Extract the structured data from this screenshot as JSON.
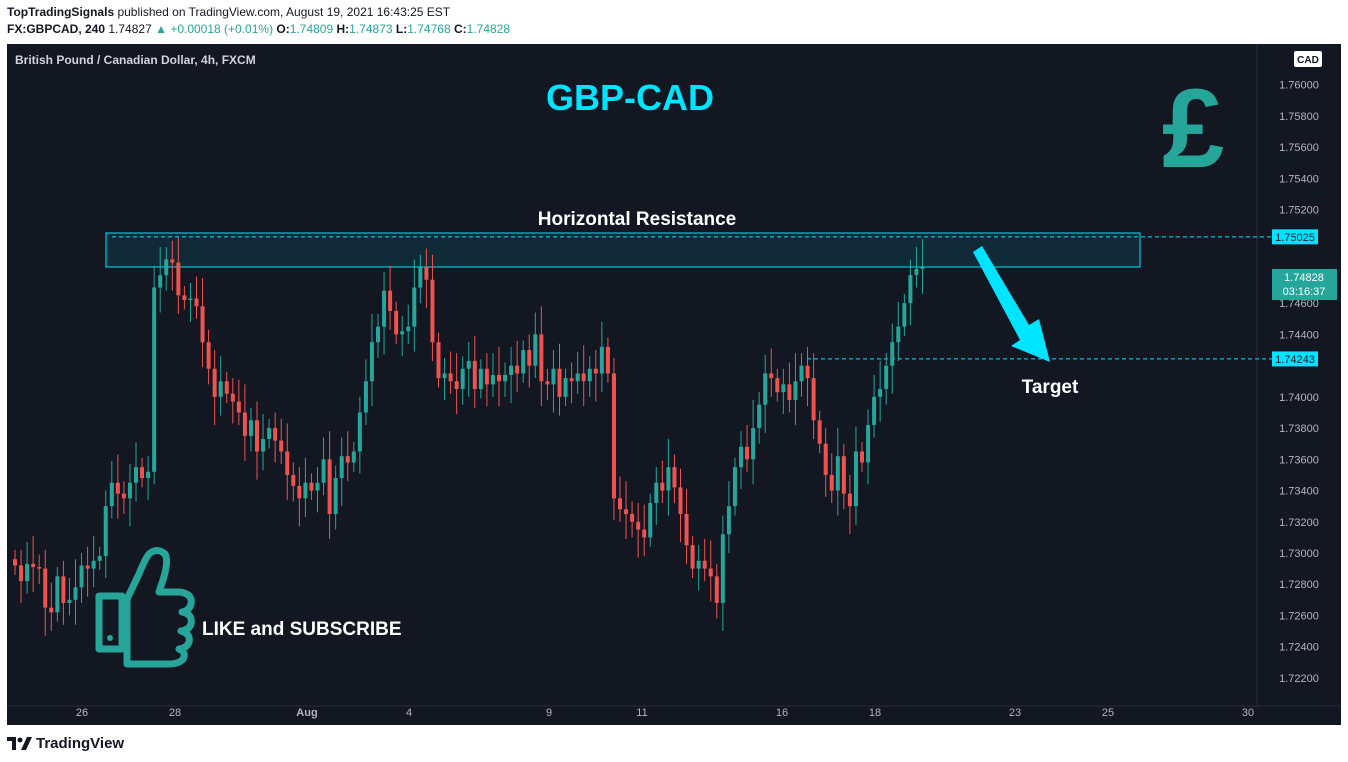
{
  "header": {
    "author": "TopTradingSignals",
    "published": " published on TradingView.com, August 19, 2021 16:43:25 EST",
    "symbol_line": "FX:GBPCAD, 240",
    "last": "1.74827",
    "change": "▲ +0.00018 (+0.01%)",
    "o_label": "O:",
    "o_val": "1.74809",
    "h_label": "H:",
    "h_val": "1.74873",
    "l_label": "L:",
    "l_val": "1.74768",
    "c_label": "C:",
    "c_val": "1.74828"
  },
  "footer": {
    "brand": "TradingView"
  },
  "chart_data": {
    "type": "candlestick",
    "title": "GBP-CAD",
    "instrument": "British Pound / Canadian Dollar, 4h, FXCM",
    "currency_badge": "CAD",
    "ylim": [
      1.7202,
      1.7626
    ],
    "y_ticks": [
      "1.76000",
      "1.75800",
      "1.75600",
      "1.75400",
      "1.75200",
      "1.74600",
      "1.74400",
      "1.74000",
      "1.73800",
      "1.73600",
      "1.73400",
      "1.73200",
      "1.73000",
      "1.72800",
      "1.72600",
      "1.72400",
      "1.72200"
    ],
    "x_ticks": [
      "26",
      "28",
      "Aug",
      "4",
      "9",
      "11",
      "16",
      "18",
      "23",
      "25",
      "30"
    ],
    "closes": [
      1.7292,
      1.7282,
      1.7293,
      1.7291,
      1.729,
      1.7265,
      1.7262,
      1.7285,
      1.7268,
      1.727,
      1.7278,
      1.7292,
      1.729,
      1.7295,
      1.7298,
      1.733,
      1.7345,
      1.7338,
      1.7335,
      1.7345,
      1.7355,
      1.7348,
      1.7352,
      1.747,
      1.7478,
      1.7488,
      1.7486,
      1.7465,
      1.7462,
      1.7463,
      1.7458,
      1.7435,
      1.7418,
      1.74,
      1.741,
      1.7402,
      1.7397,
      1.739,
      1.7375,
      1.7385,
      1.7365,
      1.7373,
      1.738,
      1.7372,
      1.7365,
      1.735,
      1.7343,
      1.7335,
      1.7345,
      1.734,
      1.7345,
      1.736,
      1.7325,
      1.7348,
      1.7362,
      1.7358,
      1.7365,
      1.739,
      1.741,
      1.7435,
      1.7445,
      1.7468,
      1.7455,
      1.744,
      1.7442,
      1.7445,
      1.747,
      1.7483,
      1.7475,
      1.7435,
      1.7412,
      1.7415,
      1.741,
      1.7405,
      1.7418,
      1.7423,
      1.7405,
      1.7418,
      1.7408,
      1.7414,
      1.741,
      1.7414,
      1.742,
      1.7415,
      1.743,
      1.742,
      1.744,
      1.741,
      1.7408,
      1.7418,
      1.74,
      1.7412,
      1.741,
      1.7415,
      1.741,
      1.7418,
      1.7415,
      1.7432,
      1.7415,
      1.7335,
      1.7328,
      1.7325,
      1.732,
      1.7315,
      1.731,
      1.7332,
      1.7345,
      1.734,
      1.7355,
      1.7342,
      1.7325,
      1.7305,
      1.729,
      1.7295,
      1.729,
      1.7285,
      1.7268,
      1.7312,
      1.733,
      1.7355,
      1.7368,
      1.736,
      1.738,
      1.7395,
      1.7415,
      1.7412,
      1.7403,
      1.7408,
      1.7398,
      1.741,
      1.742,
      1.7412,
      1.7385,
      1.737,
      1.735,
      1.734,
      1.7362,
      1.7338,
      1.733,
      1.7365,
      1.7358,
      1.7382,
      1.74,
      1.7405,
      1.742,
      1.7435,
      1.7445,
      1.746,
      1.7478,
      1.7482,
      1.7483
    ],
    "annotations": {
      "resistance_label": "Horizontal Resistance",
      "resistance_level": 1.75025,
      "resistance_price_label": "1.75025",
      "target_label": "Target",
      "target_level": 1.74243,
      "target_price_label": "1.74243",
      "last_price_label": "1.74828",
      "countdown": "03:16:37",
      "cta": "LIKE and SUBSCRIBE",
      "icon": "pound-sign-icon"
    },
    "colors": {
      "up": "#26a69a",
      "down": "#ef5350",
      "accent": "#00e5ff",
      "background": "#131722"
    }
  }
}
